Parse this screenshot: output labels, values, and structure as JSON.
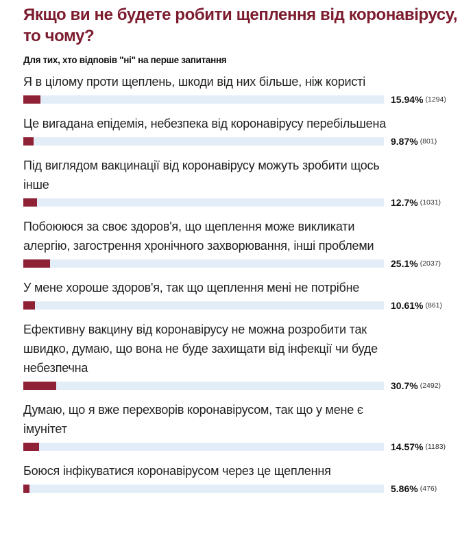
{
  "title": "Якщо ви не будете робити щеплення від коронавірусу, то чому?",
  "subtitle": "Для тих, хто відповів \"ні\" на перше запитання",
  "colors": {
    "bar": "#8f2136",
    "track": "#e3edf7",
    "title": "#7c1c2e"
  },
  "chart_data": {
    "type": "bar",
    "title": "Якщо ви не будете робити щеплення від коронавірусу, то чому?",
    "subtitle": "Для тих, хто відповів \"ні\" на перше запитання",
    "items": [
      {
        "label": "Я в цілому проти щеплень, шкоди від них більше, ніж користі",
        "percent": 15.94,
        "percent_label": "15.94%",
        "count": 1294,
        "count_label": "(1294)"
      },
      {
        "label": "Це вигадана епідемія, небезпека від коронавірусу перебільшена",
        "percent": 9.87,
        "percent_label": "9.87%",
        "count": 801,
        "count_label": "(801)"
      },
      {
        "label": "Під виглядом вакцинації від коронавірусу можуть зробити щось інше",
        "percent": 12.7,
        "percent_label": "12.7%",
        "count": 1031,
        "count_label": "(1031)"
      },
      {
        "label": "Побоююся за своє здоров'я, що щеплення може викликати алергію, загострення хронічного захворювання, інші проблеми",
        "percent": 25.1,
        "percent_label": "25.1%",
        "count": 2037,
        "count_label": "(2037)"
      },
      {
        "label": "У мене хороше здоров'я, так що щеплення мені не потрібне",
        "percent": 10.61,
        "percent_label": "10.61%",
        "count": 861,
        "count_label": "(861)"
      },
      {
        "label": "Ефективну вакцину від коронавірусу не можна розробити так швидко, думаю, що вона не буде захищати від інфекції чи буде небезпечна",
        "percent": 30.7,
        "percent_label": "30.7%",
        "count": 2492,
        "count_label": "(2492)"
      },
      {
        "label": "Думаю, що я вже перехворів коронавірусом, так що у мене є імунітет",
        "percent": 14.57,
        "percent_label": "14.57%",
        "count": 1183,
        "count_label": "(1183)"
      },
      {
        "label": "Боюся інфікуватися коронавірусом через це щеплення",
        "percent": 5.86,
        "percent_label": "5.86%",
        "count": 476,
        "count_label": "(476)"
      }
    ]
  }
}
